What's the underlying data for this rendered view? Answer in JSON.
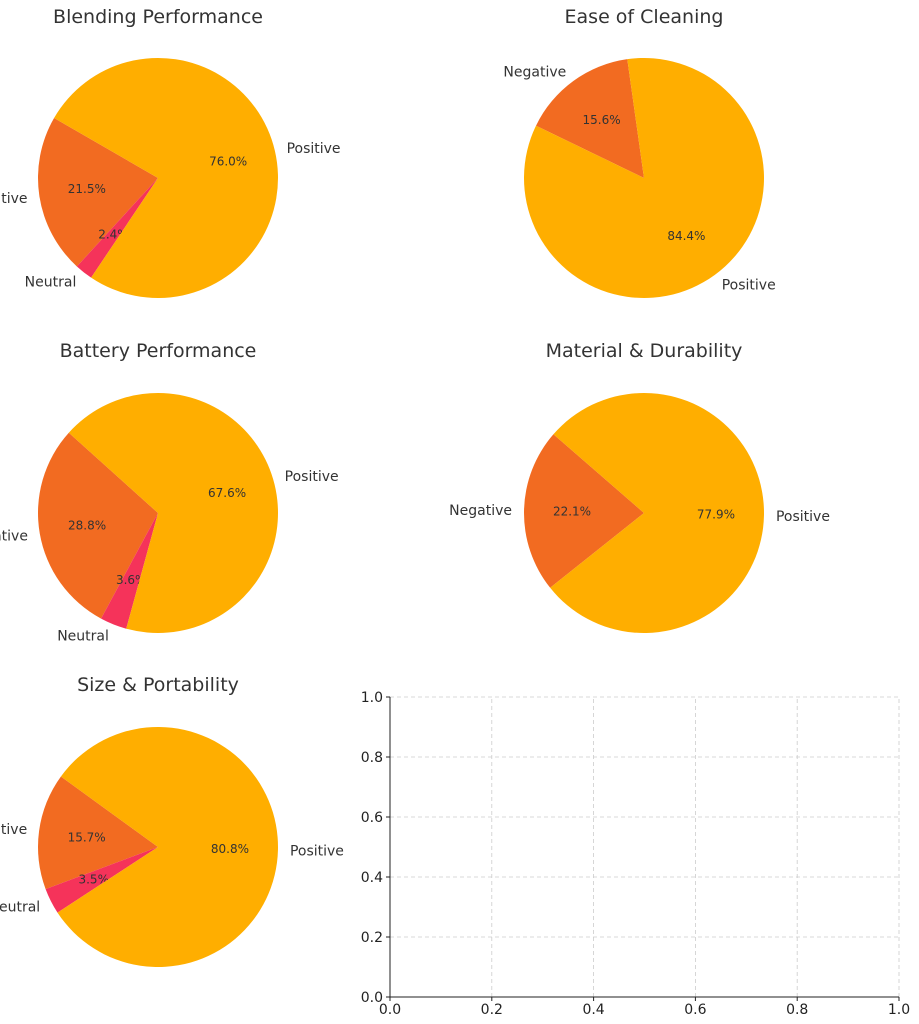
{
  "colors": {
    "Positive": "#FFAE00",
    "Negative": "#F26B21",
    "Neutral": "#F5335A"
  },
  "chart_data": [
    {
      "type": "pie",
      "title": "Blending Performance",
      "slices": [
        {
          "label": "Negative",
          "value": 21.5,
          "display": "21.5%"
        },
        {
          "label": "Neutral",
          "value": 2.4,
          "display": "2.4%"
        },
        {
          "label": "Positive",
          "value": 76.0,
          "display": "76.0%"
        }
      ]
    },
    {
      "type": "pie",
      "title": "Ease of Cleaning",
      "slices": [
        {
          "label": "Negative",
          "value": 15.6,
          "display": "15.6%"
        },
        {
          "label": "Positive",
          "value": 84.4,
          "display": "84.4%"
        }
      ]
    },
    {
      "type": "pie",
      "title": "Battery Performance",
      "slices": [
        {
          "label": "Negative",
          "value": 28.8,
          "display": "28.8%"
        },
        {
          "label": "Neutral",
          "value": 3.6,
          "display": "3.6%"
        },
        {
          "label": "Positive",
          "value": 67.6,
          "display": "67.6%"
        }
      ]
    },
    {
      "type": "pie",
      "title": "Material & Durability",
      "slices": [
        {
          "label": "Negative",
          "value": 22.1,
          "display": "22.1%"
        },
        {
          "label": "Positive",
          "value": 77.9,
          "display": "77.9%"
        }
      ]
    },
    {
      "type": "pie",
      "title": "Size & Portability",
      "slices": [
        {
          "label": "Negative",
          "value": 15.7,
          "display": "15.7%"
        },
        {
          "label": "Neutral",
          "value": 3.5,
          "display": "3.5%"
        },
        {
          "label": "Positive",
          "value": 80.8,
          "display": "80.8%"
        }
      ]
    },
    {
      "type": "scatter",
      "title": "",
      "series": [],
      "xlim": [
        0,
        1
      ],
      "ylim": [
        0,
        1
      ],
      "xticks": [
        "0.0",
        "0.2",
        "0.4",
        "0.6",
        "0.8",
        "1.0"
      ],
      "yticks": [
        "0.0",
        "0.2",
        "0.4",
        "0.6",
        "0.8",
        "1.0"
      ],
      "grid": true
    }
  ]
}
